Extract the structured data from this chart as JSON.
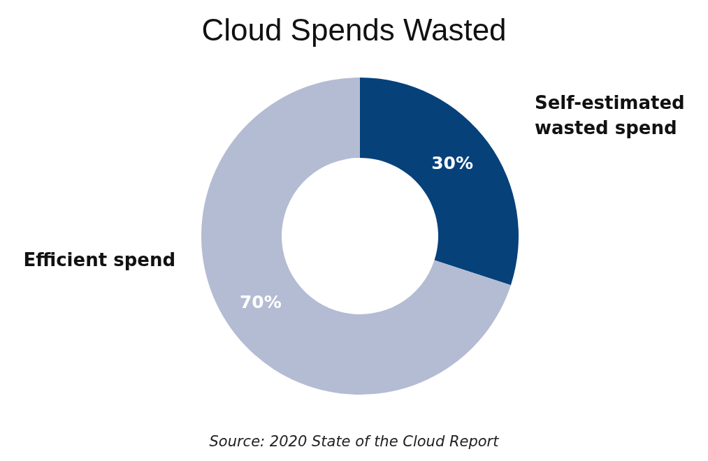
{
  "chart_data": {
    "type": "donut",
    "title": "Cloud Spends Wasted",
    "categories": [
      "Self-estimated wasted spend",
      "Efficient spend"
    ],
    "values": [
      30,
      70
    ],
    "colors": [
      "#06417a",
      "#b4bcd3"
    ],
    "value_labels": [
      "30%",
      "70%"
    ],
    "annotations": [
      "Source: 2020 State of the Cloud Report"
    ]
  }
}
